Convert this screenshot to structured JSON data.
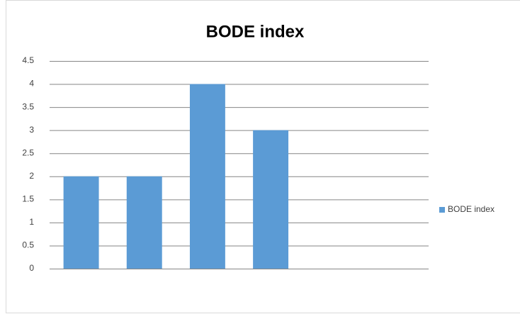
{
  "chart_data": {
    "type": "bar",
    "title": "BODE index",
    "categories": [
      null,
      null,
      null,
      null,
      null,
      null
    ],
    "series": [
      {
        "name": "BODE index",
        "color": "#5b9bd5",
        "values": [
          2,
          2,
          4,
          3,
          null,
          null
        ]
      }
    ],
    "ylim": [
      0,
      4.5
    ],
    "yticks": [
      0,
      0.5,
      1,
      1.5,
      2,
      2.5,
      3,
      3.5,
      4,
      4.5
    ],
    "grid": true,
    "legend": "right"
  }
}
